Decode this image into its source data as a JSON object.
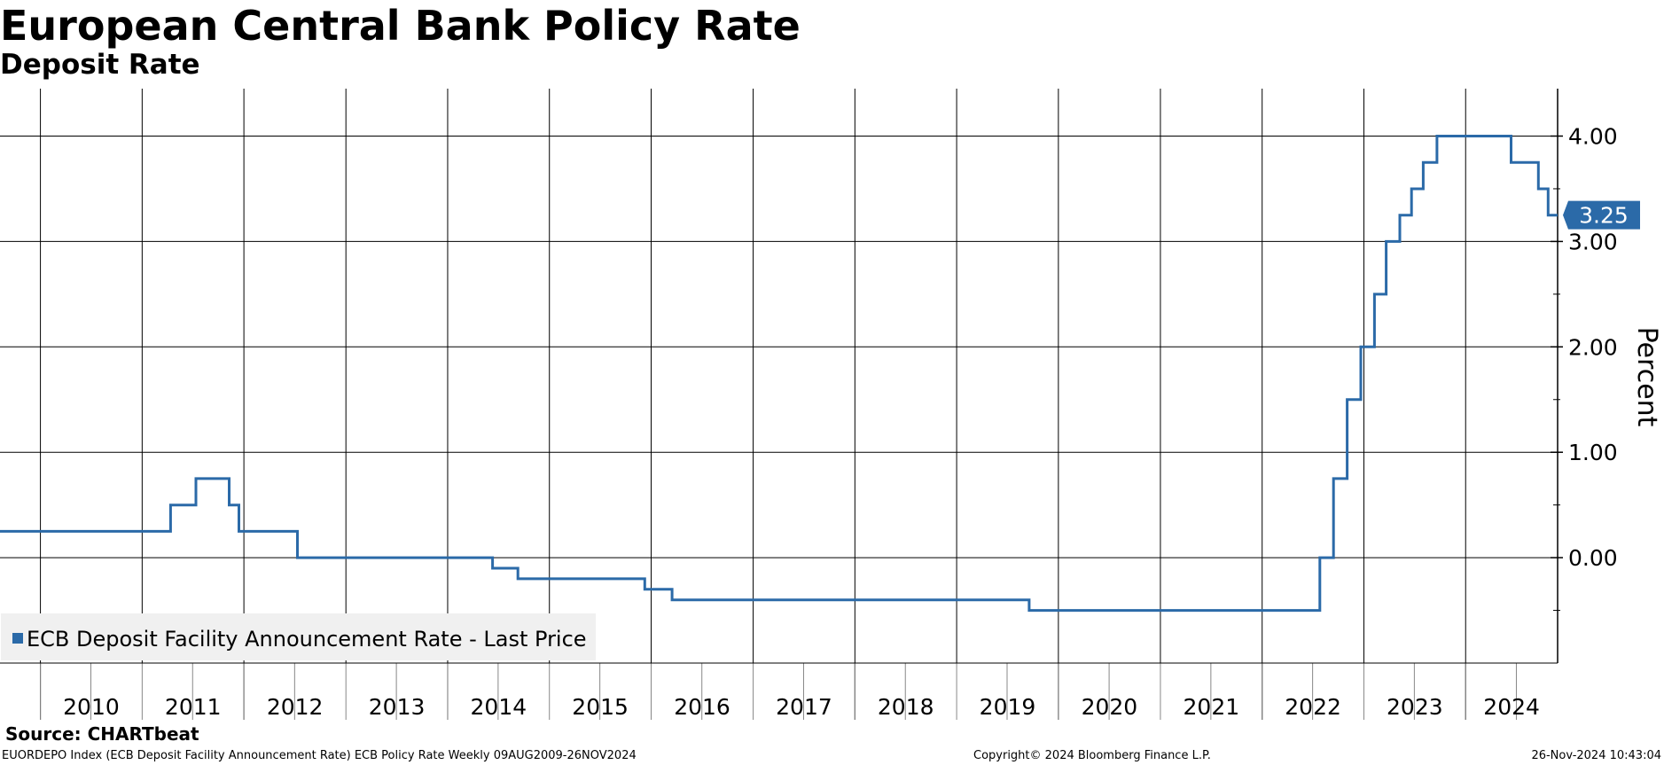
{
  "header": {
    "title": "European Central Bank Policy Rate",
    "subtitle": "Deposit Rate"
  },
  "footer": {
    "source": "Source: CHARTbeat",
    "description": "EUORDEPO Index (ECB Deposit Facility Announcement Rate) ECB Policy Rate  Weekly 09AUG2009-26NOV2024",
    "copyright": "Copyright© 2024 Bloomberg Finance L.P.",
    "timestamp": "26-Nov-2024 10:43:04"
  },
  "colors": {
    "series": "#2b6aa8",
    "grid": "#000000",
    "legend_bg": "#f0f0f0"
  },
  "chart_data": {
    "type": "line",
    "ylabel": "Percent",
    "ylim": [
      -1.0,
      4.45
    ],
    "yticks": [
      0.0,
      1.0,
      2.0,
      3.0,
      4.0
    ],
    "ytick_labels": [
      "0.00",
      "1.00",
      "2.00",
      "3.00",
      "4.00"
    ],
    "xlim": [
      "2009-08-09",
      "2024-11-26"
    ],
    "x_year_labels": [
      "2010",
      "2011",
      "2012",
      "2013",
      "2014",
      "2015",
      "2016",
      "2017",
      "2018",
      "2019",
      "2020",
      "2021",
      "2022",
      "2023",
      "2024"
    ],
    "grid": true,
    "legend_position": "bottom-left",
    "series": [
      {
        "name": "ECB Deposit Facility Announcement Rate - Last Price",
        "step": true,
        "x": [
          "2009-08-09",
          "2011-04-13",
          "2011-07-13",
          "2011-11-09",
          "2011-12-14",
          "2012-07-11",
          "2014-06-11",
          "2014-09-10",
          "2015-12-09",
          "2016-03-16",
          "2019-09-18",
          "2022-07-27",
          "2022-09-14",
          "2022-11-02",
          "2022-12-21",
          "2023-02-08",
          "2023-03-22",
          "2023-05-10",
          "2023-06-21",
          "2023-08-02",
          "2023-09-20",
          "2024-06-12",
          "2024-09-18",
          "2024-10-23",
          "2024-11-26"
        ],
        "values": [
          0.25,
          0.5,
          0.75,
          0.5,
          0.25,
          0.0,
          -0.1,
          -0.2,
          -0.3,
          -0.4,
          -0.5,
          0.0,
          0.75,
          1.5,
          2.0,
          2.5,
          3.0,
          3.25,
          3.5,
          3.75,
          4.0,
          3.75,
          3.5,
          3.25,
          3.25
        ]
      }
    ],
    "last_value_label": "3.25"
  }
}
